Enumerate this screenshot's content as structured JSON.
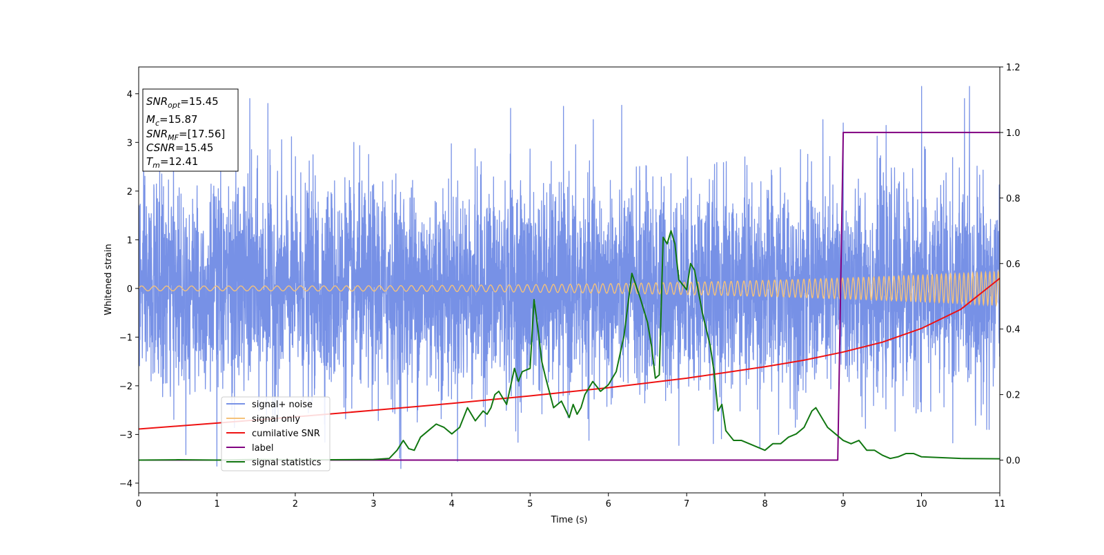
{
  "chart_data": {
    "type": "line",
    "title": "",
    "xlabel": "Time (s)",
    "ylabel": "Whitened strain",
    "xlim": [
      0,
      11
    ],
    "ylim_left": [
      -4.2,
      4.55
    ],
    "ylim_right": [
      -0.1,
      1.2
    ],
    "x_ticks": [
      0,
      1,
      2,
      3,
      4,
      5,
      6,
      7,
      8,
      9,
      10,
      11
    ],
    "y_left_ticks": [
      -4,
      -3,
      -2,
      -1,
      0,
      1,
      2,
      3,
      4
    ],
    "y_right_ticks": [
      0.0,
      0.2,
      0.4,
      0.6,
      0.8,
      1.0,
      1.2
    ],
    "grid": false,
    "legend_position": "lower-left",
    "annotation": {
      "lines": [
        {
          "base": "SNR",
          "sub": "opt",
          "value": "=15.45"
        },
        {
          "base": "M",
          "sub": "c",
          "value": "=15.87"
        },
        {
          "base": "SNR",
          "sub": "MF",
          "value": "=[17.56]"
        },
        {
          "base": "CSNR",
          "sub": "",
          "value": "=15.45"
        },
        {
          "base": "T",
          "sub": "m",
          "value": "=12.41"
        }
      ]
    },
    "series": [
      {
        "name": "signal+ noise",
        "axis": "left",
        "color": "#7791e6",
        "kind": "noise",
        "sigma": 1.0,
        "clip": [
          -3.7,
          4.15
        ],
        "peaks": [
          [
            1.0,
            -3.65
          ],
          [
            1.42,
            3.9
          ],
          [
            1.65,
            3.8
          ],
          [
            3.35,
            -3.7
          ],
          [
            4.75,
            3.7
          ],
          [
            9.0,
            3.4
          ],
          [
            10.0,
            4.15
          ],
          [
            10.55,
            3.9
          ]
        ]
      },
      {
        "name": "signal only",
        "axis": "left",
        "color": "#f5c27a",
        "kind": "chirp",
        "amplitude_start": 0.05,
        "amplitude_end": 0.35,
        "frequency_start": 10,
        "frequency_end": 30
      },
      {
        "name": "cumilative SNR",
        "axis": "right",
        "color": "#ee1111",
        "x": [
          0,
          1,
          2,
          3,
          4,
          5,
          6,
          7,
          8,
          8.5,
          9,
          9.5,
          10,
          10.5,
          11
        ],
        "values": [
          0.095,
          0.113,
          0.132,
          0.152,
          0.173,
          0.196,
          0.221,
          0.25,
          0.285,
          0.305,
          0.33,
          0.36,
          0.402,
          0.46,
          0.555
        ]
      },
      {
        "name": "label",
        "axis": "right",
        "color": "#800080",
        "x": [
          0,
          8.93,
          9.0,
          11
        ],
        "values": [
          0.0,
          0.0,
          1.0,
          1.0
        ]
      },
      {
        "name": "signal statistics",
        "axis": "right",
        "color": "#117711",
        "x": [
          0,
          0.5,
          1.0,
          1.5,
          2.0,
          2.5,
          3.0,
          3.2,
          3.3,
          3.38,
          3.45,
          3.52,
          3.6,
          3.7,
          3.8,
          3.9,
          4.0,
          4.1,
          4.2,
          4.3,
          4.4,
          4.45,
          4.5,
          4.55,
          4.6,
          4.7,
          4.8,
          4.85,
          4.9,
          5.0,
          5.05,
          5.1,
          5.15,
          5.2,
          5.3,
          5.4,
          5.5,
          5.55,
          5.6,
          5.65,
          5.7,
          5.8,
          5.9,
          6.0,
          6.1,
          6.2,
          6.3,
          6.4,
          6.5,
          6.55,
          6.6,
          6.65,
          6.7,
          6.75,
          6.8,
          6.85,
          6.9,
          7.0,
          7.05,
          7.1,
          7.2,
          7.3,
          7.35,
          7.4,
          7.45,
          7.5,
          7.6,
          7.7,
          7.8,
          7.9,
          8.0,
          8.1,
          8.2,
          8.3,
          8.4,
          8.5,
          8.6,
          8.65,
          8.7,
          8.8,
          8.9,
          9.0,
          9.1,
          9.2,
          9.3,
          9.4,
          9.5,
          9.6,
          9.7,
          9.8,
          9.9,
          10.0,
          10.5,
          11.0
        ],
        "values": [
          0.0,
          0.001,
          0.0,
          0.002,
          0.001,
          0.001,
          0.002,
          0.005,
          0.03,
          0.06,
          0.035,
          0.03,
          0.07,
          0.09,
          0.11,
          0.1,
          0.08,
          0.1,
          0.16,
          0.12,
          0.15,
          0.14,
          0.16,
          0.2,
          0.21,
          0.17,
          0.28,
          0.24,
          0.27,
          0.28,
          0.49,
          0.4,
          0.3,
          0.25,
          0.16,
          0.18,
          0.13,
          0.17,
          0.14,
          0.16,
          0.2,
          0.24,
          0.21,
          0.23,
          0.27,
          0.38,
          0.57,
          0.5,
          0.42,
          0.35,
          0.25,
          0.26,
          0.68,
          0.66,
          0.7,
          0.66,
          0.55,
          0.52,
          0.6,
          0.58,
          0.45,
          0.35,
          0.27,
          0.15,
          0.17,
          0.09,
          0.06,
          0.06,
          0.05,
          0.04,
          0.03,
          0.05,
          0.05,
          0.07,
          0.08,
          0.1,
          0.15,
          0.16,
          0.14,
          0.1,
          0.08,
          0.06,
          0.05,
          0.06,
          0.03,
          0.03,
          0.015,
          0.005,
          0.01,
          0.02,
          0.02,
          0.01,
          0.005,
          0.004
        ]
      }
    ]
  }
}
